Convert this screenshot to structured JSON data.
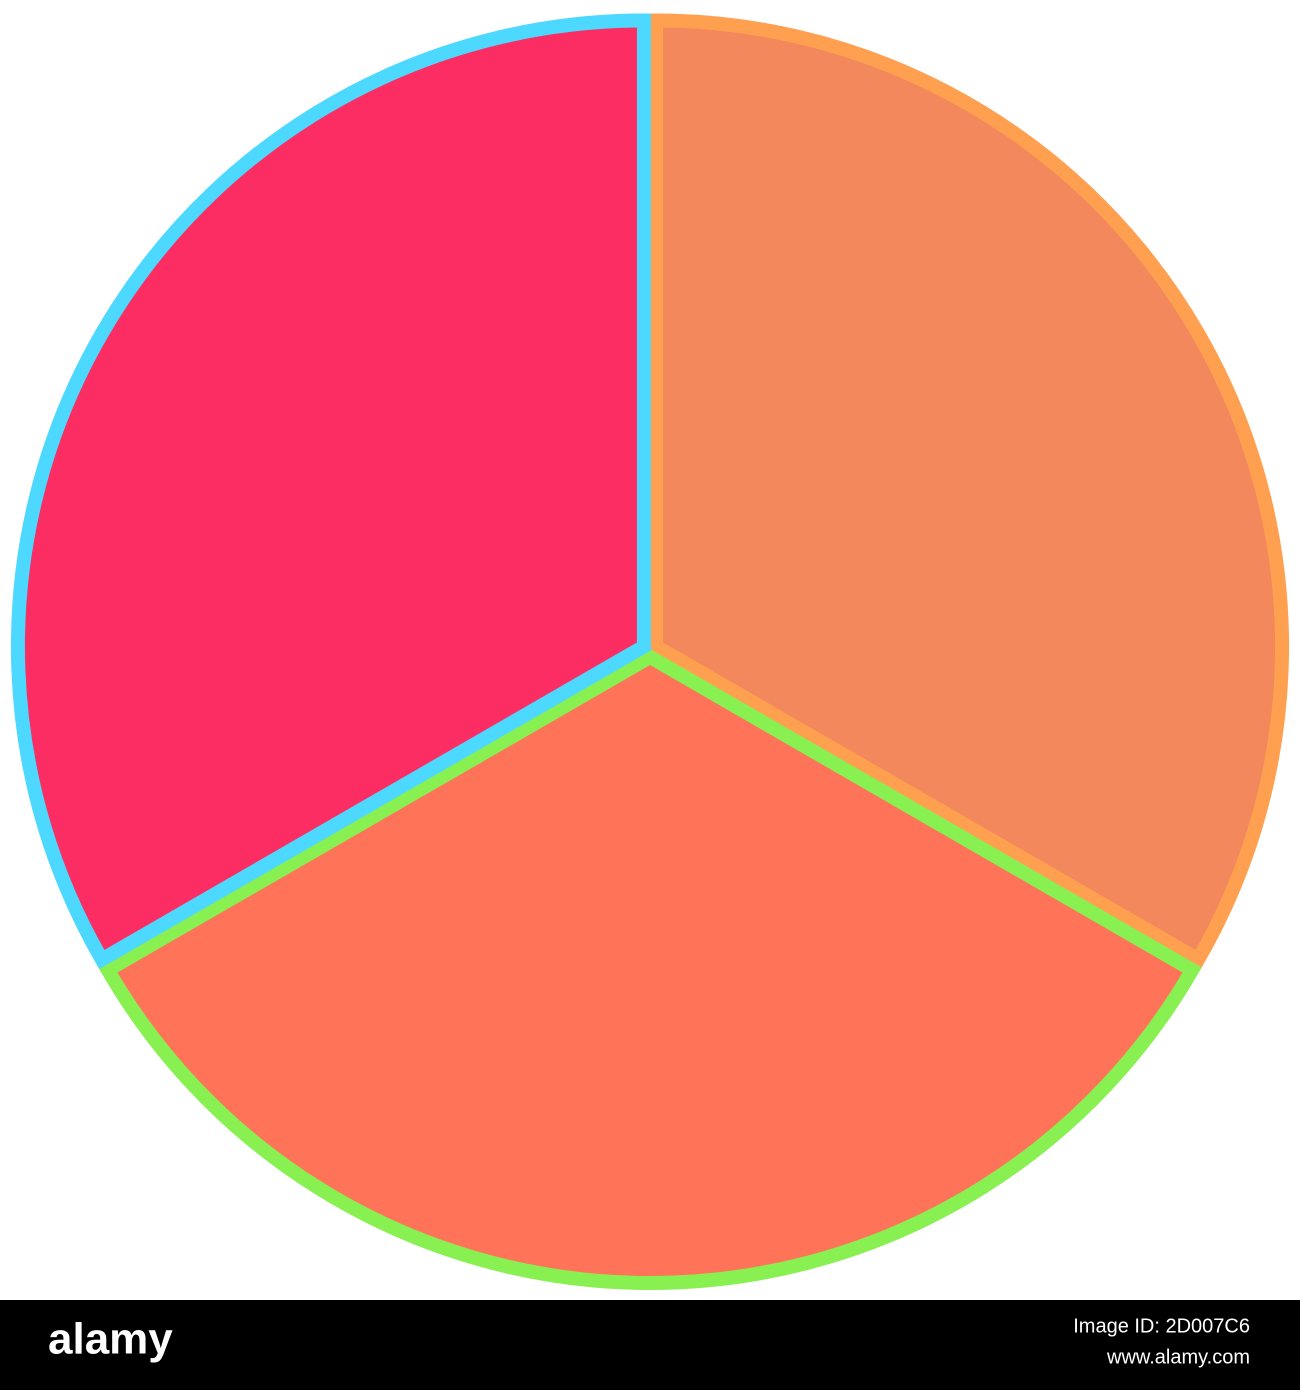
{
  "chart_data": {
    "type": "pie",
    "categories": [
      null,
      null,
      null
    ],
    "values": [
      33.3,
      33.3,
      33.3
    ],
    "colors": [
      "#f2885c",
      "#ff7358",
      "#fc2d63"
    ],
    "edge_colors": [
      "#ffa050",
      "#88f050",
      "#4dd8ff"
    ]
  },
  "footer": {
    "logo": "alamy",
    "image_id": "Image ID: 2D007C6",
    "url": "www.alamy.com"
  }
}
